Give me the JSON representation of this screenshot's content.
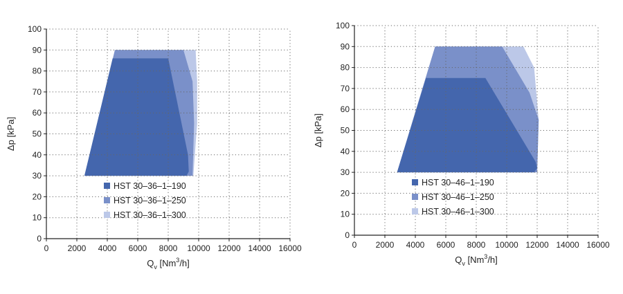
{
  "colors": {
    "series": [
      "#4466ad",
      "#7a90c9",
      "#bcc8e8"
    ],
    "grid": "#666666",
    "axis": "#222222"
  },
  "chart_data": [
    {
      "type": "area",
      "xlabel": "Q",
      "xlabel_sub": "v",
      "xlabel_unit_pre": " [Nm",
      "xlabel_unit_sup": "3",
      "xlabel_unit_post": "/h]",
      "ylabel": "Δp [kPa]",
      "xlim": [
        0,
        16000
      ],
      "ylim": [
        0,
        100
      ],
      "xticks": [
        "0",
        "2000",
        "4000",
        "6000",
        "8000",
        "10000",
        "12000",
        "14000",
        "16000"
      ],
      "yticks": [
        "0",
        "10",
        "20",
        "30",
        "40",
        "50",
        "60",
        "70",
        "80",
        "90",
        "100"
      ],
      "grid": true,
      "legend_position": "lower-center",
      "series": [
        {
          "name": "HST 30–36–1–190",
          "polygon": [
            [
              2500,
              30
            ],
            [
              4350,
              86
            ],
            [
              8000,
              86
            ],
            [
              9300,
              40
            ],
            [
              9350,
              32
            ],
            [
              9200,
              30
            ]
          ]
        },
        {
          "name": "HST 30–36–1–250",
          "polygon": [
            [
              2500,
              30
            ],
            [
              4500,
              90
            ],
            [
              9000,
              90
            ],
            [
              9600,
              75
            ],
            [
              9700,
              55
            ],
            [
              9600,
              30
            ]
          ]
        },
        {
          "name": "HST 30–36–1–300",
          "polygon": [
            [
              2500,
              30
            ],
            [
              4500,
              90
            ],
            [
              9800,
              90
            ],
            [
              9900,
              75
            ],
            [
              9900,
              55
            ],
            [
              9650,
              30
            ]
          ]
        }
      ]
    },
    {
      "type": "area",
      "xlabel": "Q",
      "xlabel_sub": "v",
      "xlabel_unit_pre": " [Nm",
      "xlabel_unit_sup": "3",
      "xlabel_unit_post": "/h]",
      "ylabel": "Δp [kPa]",
      "xlim": [
        0,
        16000
      ],
      "ylim": [
        0,
        100
      ],
      "xticks": [
        "0",
        "2000",
        "4000",
        "6000",
        "8000",
        "10000",
        "12000",
        "14000",
        "16000"
      ],
      "yticks": [
        "0",
        "10",
        "20",
        "30",
        "40",
        "50",
        "60",
        "70",
        "80",
        "90",
        "100"
      ],
      "grid": true,
      "legend_position": "lower-center",
      "series": [
        {
          "name": "HST 30–46–1–190",
          "polygon": [
            [
              2800,
              30
            ],
            [
              4700,
              75
            ],
            [
              8600,
              75
            ],
            [
              11900,
              35
            ],
            [
              12000,
              32
            ],
            [
              11800,
              30
            ]
          ]
        },
        {
          "name": "HST 30–46–1–250",
          "polygon": [
            [
              2800,
              30
            ],
            [
              5300,
              90
            ],
            [
              9700,
              90
            ],
            [
              11500,
              68
            ],
            [
              12100,
              55
            ],
            [
              12000,
              30
            ]
          ]
        },
        {
          "name": "HST 30–46–1–300",
          "polygon": [
            [
              2800,
              30
            ],
            [
              5300,
              90
            ],
            [
              11100,
              90
            ],
            [
              11800,
              80
            ],
            [
              12100,
              55
            ],
            [
              12000,
              30
            ]
          ]
        }
      ]
    }
  ]
}
